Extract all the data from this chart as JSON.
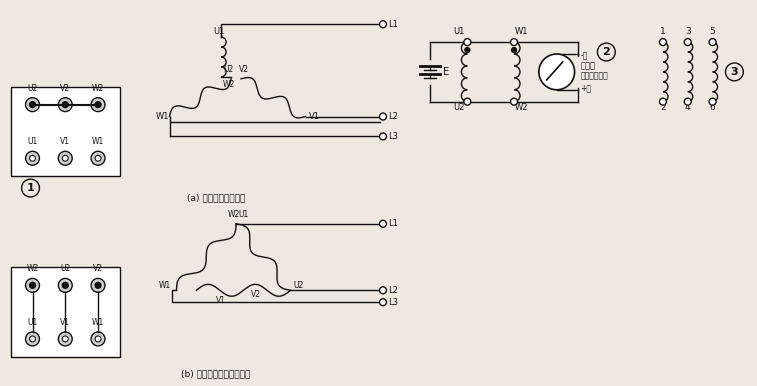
{
  "bg_color": "#ede8e0",
  "text_color": "#111111",
  "label_a": "(a) 定子绕组星形连接",
  "label_b": "(b) 定子绕组的三角形连接",
  "meter_label1": "万用表",
  "meter_label2": "接针正向偏转",
  "battery_label": "E",
  "plus_label": "+红",
  "minus_label": "-黑"
}
